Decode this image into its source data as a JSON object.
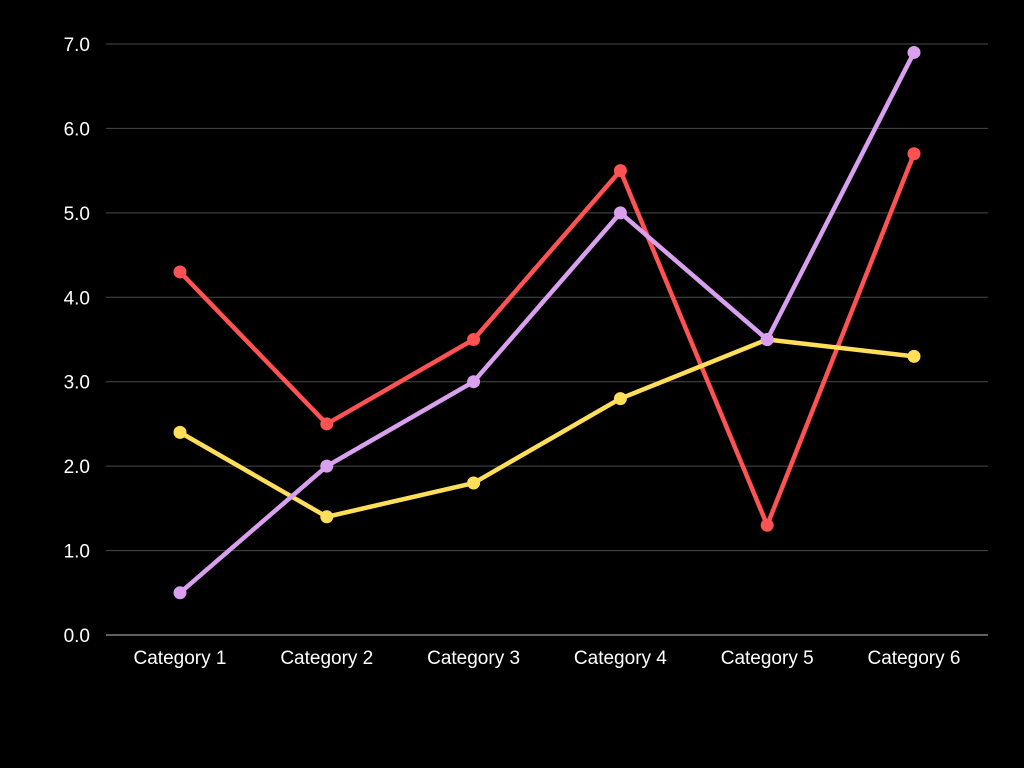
{
  "chart_data": {
    "type": "line",
    "title": "",
    "xlabel": "",
    "ylabel": "",
    "categories": [
      "Category 1",
      "Category 2",
      "Category 3",
      "Category 4",
      "Category 5",
      "Category 6"
    ],
    "ylim": [
      0,
      7
    ],
    "yticks": [
      "0.0",
      "1.0",
      "2.0",
      "3.0",
      "4.0",
      "5.0",
      "6.0",
      "7.0"
    ],
    "grid": true,
    "legend": "none",
    "background": "#000000",
    "series": [
      {
        "color": "#ff5252",
        "values": [
          4.3,
          2.5,
          3.5,
          5.5,
          1.3,
          5.7
        ]
      },
      {
        "color": "#ffde59",
        "values": [
          2.4,
          1.4,
          1.8,
          2.8,
          3.5,
          3.3
        ]
      },
      {
        "color": "#d9a0f0",
        "values": [
          0.5,
          2.0,
          3.0,
          5.0,
          3.5,
          6.9
        ]
      }
    ]
  }
}
